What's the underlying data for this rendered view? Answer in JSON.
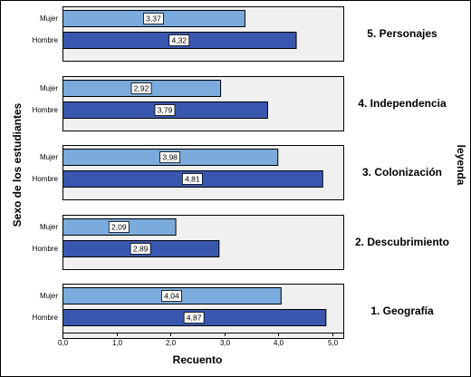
{
  "chart_data": {
    "type": "bar",
    "orientation": "horizontal",
    "xlabel": "Recuento",
    "ylabel": "Sexo de los estudiantes",
    "panel_axis_label": "leyenda",
    "xlim": [
      0,
      5.2
    ],
    "xticks": [
      {
        "value": 0,
        "label": "0,0"
      },
      {
        "value": 1,
        "label": "1,0"
      },
      {
        "value": 2,
        "label": "2,0"
      },
      {
        "value": 3,
        "label": "3,0"
      },
      {
        "value": 4,
        "label": "4,0"
      },
      {
        "value": 5,
        "label": "5,0"
      }
    ],
    "categories": [
      "Mujer",
      "Hombre"
    ],
    "colors": {
      "Mujer": "#7aabdc",
      "Hombre": "#3a57b0"
    },
    "panels": [
      {
        "title": "5. Personajes",
        "bars": [
          {
            "category": "Mujer",
            "value": 3.37,
            "label": "3,37"
          },
          {
            "category": "Hombre",
            "value": 4.32,
            "label": "4,32"
          }
        ]
      },
      {
        "title": "4. Independencia",
        "bars": [
          {
            "category": "Mujer",
            "value": 2.92,
            "label": "2,92"
          },
          {
            "category": "Hombre",
            "value": 3.79,
            "label": "3,79"
          }
        ]
      },
      {
        "title": "3. Colonización",
        "bars": [
          {
            "category": "Mujer",
            "value": 3.98,
            "label": "3,98"
          },
          {
            "category": "Hombre",
            "value": 4.81,
            "label": "4,81"
          }
        ]
      },
      {
        "title": "2. Descubrimiento",
        "bars": [
          {
            "category": "Mujer",
            "value": 2.09,
            "label": "2,09"
          },
          {
            "category": "Hombre",
            "value": 2.89,
            "label": "2,89"
          }
        ]
      },
      {
        "title": "1. Geografía",
        "bars": [
          {
            "category": "Mujer",
            "value": 4.04,
            "label": "4,04"
          },
          {
            "category": "Hombre",
            "value": 4.87,
            "label": "4,87"
          }
        ]
      }
    ]
  }
}
